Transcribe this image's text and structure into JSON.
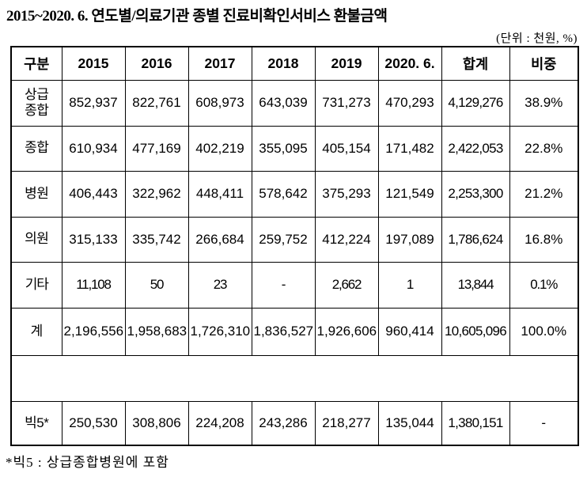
{
  "title": "2015~2020. 6. 연도별/의료기관 종별 진료비확인서비스 환불금액",
  "unit_note": "(단위 : 천원, %)",
  "footnote": "*빅5 : 상급종합병원에 포함",
  "table": {
    "columns": [
      "구분",
      "2015",
      "2016",
      "2017",
      "2018",
      "2019",
      "2020. 6.",
      "합계",
      "비중"
    ],
    "rows": [
      {
        "label": "상급\n종합",
        "values": [
          "852,937",
          "822,761",
          "608,973",
          "643,039",
          "731,273",
          "470,293",
          "4,129,276",
          "38.9%"
        ]
      },
      {
        "label": "종합",
        "values": [
          "610,934",
          "477,169",
          "402,219",
          "355,095",
          "405,154",
          "171,482",
          "2,422,053",
          "22.8%"
        ]
      },
      {
        "label": "병원",
        "values": [
          "406,443",
          "322,962",
          "448,411",
          "578,642",
          "375,293",
          "121,549",
          "2,253,300",
          "21.2%"
        ]
      },
      {
        "label": "의원",
        "values": [
          "315,133",
          "335,742",
          "266,684",
          "259,752",
          "412,224",
          "197,089",
          "1,786,624",
          "16.8%"
        ]
      },
      {
        "label": "기타",
        "values": [
          "11,108",
          "50",
          "23",
          "-",
          "2,662",
          "1",
          "13,844",
          "0.1%"
        ]
      },
      {
        "label": "계",
        "values": [
          "2,196,556",
          "1,958,683",
          "1,726,310",
          "1,836,527",
          "1,926,606",
          "960,414",
          "10,605,096",
          "100.0%"
        ]
      },
      {
        "label": "",
        "values": [],
        "spacer": true
      },
      {
        "label": "빅5*",
        "values": [
          "250,530",
          "308,806",
          "224,208",
          "243,286",
          "218,277",
          "135,044",
          "1,380,151",
          "-"
        ]
      }
    ]
  }
}
